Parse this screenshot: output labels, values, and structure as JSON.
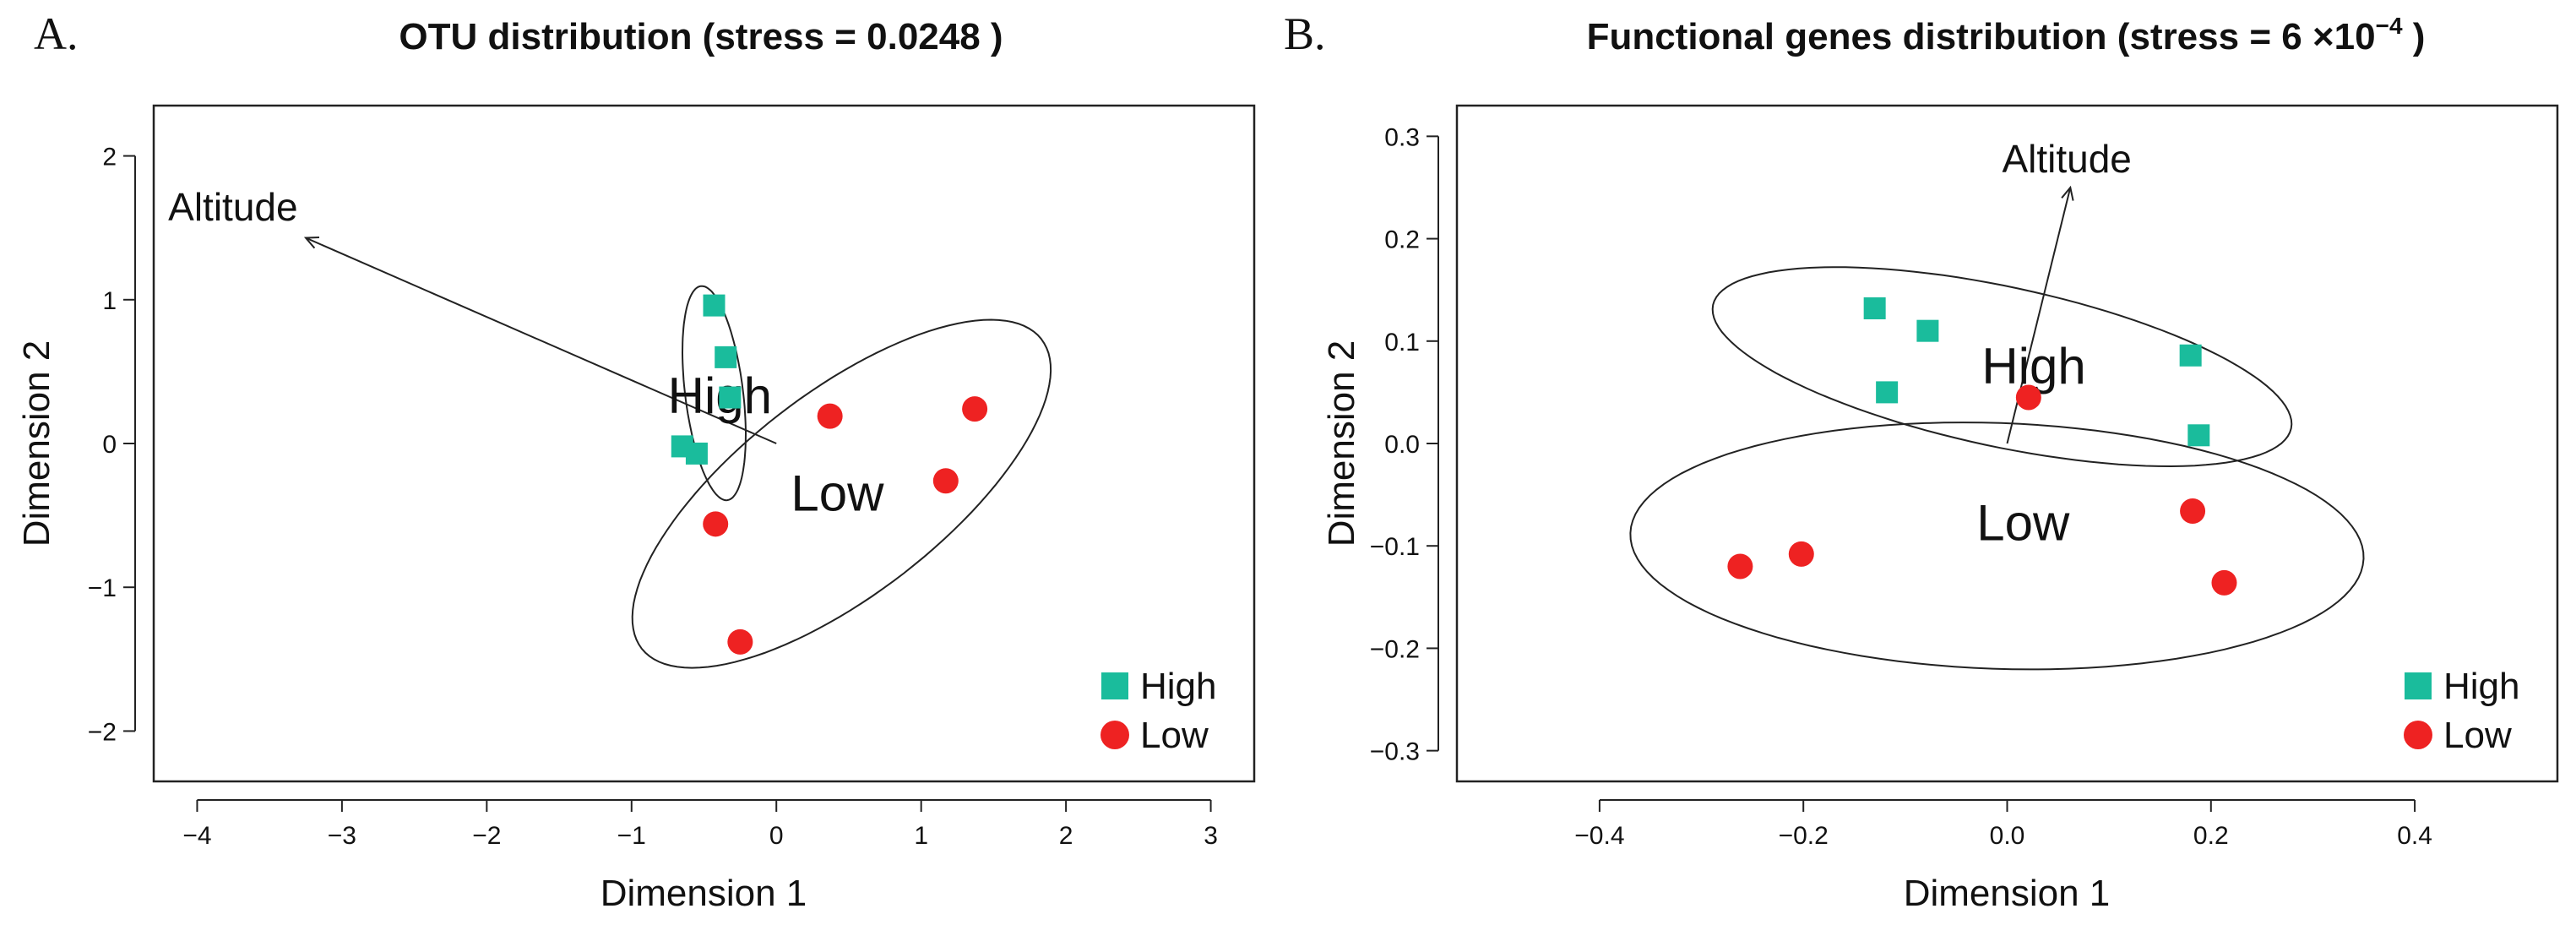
{
  "colors": {
    "high": "#1abc9c",
    "low": "#ee2222",
    "axis": "#222222"
  },
  "chart_data": [
    {
      "type": "scatter",
      "panel": "A.",
      "title": "OTU distribution (stress =  0.0248 )",
      "xlabel": "Dimension 1",
      "ylabel": "Dimension 2",
      "xlim": [
        -4.3,
        3.3
      ],
      "ylim": [
        -2.35,
        2.35
      ],
      "x_ticks": [
        -4,
        -3,
        -2,
        -1,
        0,
        1,
        2,
        3
      ],
      "x_tick_labels": [
        "−4",
        "−3",
        "−2",
        "−1",
        "0",
        "1",
        "2",
        "3"
      ],
      "y_ticks": [
        -2,
        -1,
        0,
        1,
        2
      ],
      "y_tick_labels": [
        "−2",
        "−1",
        "0",
        "1",
        "2"
      ],
      "series": [
        {
          "name": "High",
          "marker": "square",
          "points": [
            [
              -0.43,
              0.96
            ],
            [
              -0.35,
              0.6
            ],
            [
              -0.65,
              -0.02
            ],
            [
              -0.55,
              -0.07
            ],
            [
              -0.32,
              0.32
            ]
          ]
        },
        {
          "name": "Low",
          "marker": "circle",
          "points": [
            [
              0.37,
              0.19
            ],
            [
              1.37,
              0.24
            ],
            [
              1.17,
              -0.26
            ],
            [
              -0.42,
              -0.56
            ],
            [
              -0.25,
              -1.38
            ]
          ]
        }
      ],
      "ellipses": [
        {
          "group": "High",
          "center": [
            -0.43,
            0.35
          ],
          "semi_axes": [
            0.2,
            0.75
          ],
          "angle_deg": 7
        },
        {
          "group": "Low",
          "center": [
            0.45,
            -0.35
          ],
          "semi_axes": [
            1.75,
            0.7
          ],
          "angle_deg": 38
        }
      ],
      "group_labels": [
        {
          "text": "High",
          "at": [
            -0.75,
            0.33
          ]
        },
        {
          "text": "Low",
          "at": [
            0.1,
            -0.35
          ]
        }
      ],
      "arrow": {
        "label": "Altitude",
        "from": [
          0.0,
          0.0
        ],
        "to": [
          -3.25,
          1.43
        ],
        "label_at": [
          -4.2,
          1.55
        ]
      },
      "legend": {
        "position": "bottom-right",
        "entries": [
          "High",
          "Low"
        ]
      }
    },
    {
      "type": "scatter",
      "panel": "B.",
      "title": "Functional genes distribution (stress = ",
      "title_mult": "6 ×10",
      "title_exp": "−4",
      "title_end": " )",
      "xlabel": "Dimension 1",
      "ylabel": "Dimension 2",
      "xlim": [
        -0.54,
        0.54
      ],
      "ylim": [
        -0.33,
        0.33
      ],
      "x_ticks": [
        -0.4,
        -0.2,
        0.0,
        0.2,
        0.4
      ],
      "x_tick_labels": [
        "−0.4",
        "−0.2",
        "0.0",
        "0.2",
        "0.4"
      ],
      "y_ticks": [
        -0.3,
        -0.2,
        -0.1,
        0.0,
        0.1,
        0.2,
        0.3
      ],
      "y_tick_labels": [
        "−0.3",
        "−0.2",
        "−0.1",
        "0.0",
        "0.1",
        "0.2",
        "0.3"
      ],
      "series": [
        {
          "name": "High",
          "marker": "square",
          "points": [
            [
              -0.13,
              0.132
            ],
            [
              -0.078,
              0.11
            ],
            [
              -0.118,
              0.05
            ],
            [
              0.18,
              0.086
            ],
            [
              0.188,
              0.008
            ]
          ]
        },
        {
          "name": "Low",
          "marker": "circle",
          "points": [
            [
              0.021,
              0.045
            ],
            [
              -0.262,
              -0.12
            ],
            [
              -0.202,
              -0.108
            ],
            [
              0.182,
              -0.066
            ],
            [
              0.213,
              -0.136
            ]
          ]
        }
      ],
      "ellipses": [
        {
          "group": "High",
          "center": [
            -0.005,
            0.075
          ],
          "semi_axes": [
            0.29,
            0.078
          ],
          "angle_deg": -12
        },
        {
          "group": "Low",
          "center": [
            -0.01,
            -0.1
          ],
          "semi_axes": [
            0.36,
            0.12
          ],
          "angle_deg": -2
        }
      ],
      "group_labels": [
        {
          "text": "High",
          "at": [
            -0.025,
            0.075
          ]
        },
        {
          "text": "Low",
          "at": [
            -0.03,
            -0.078
          ]
        }
      ],
      "arrow": {
        "label": "Altitude",
        "from": [
          0.0,
          0.0
        ],
        "to": [
          0.062,
          0.25
        ],
        "label_at": [
          -0.005,
          0.265
        ]
      },
      "legend": {
        "position": "bottom-right",
        "entries": [
          "High",
          "Low"
        ]
      }
    }
  ]
}
